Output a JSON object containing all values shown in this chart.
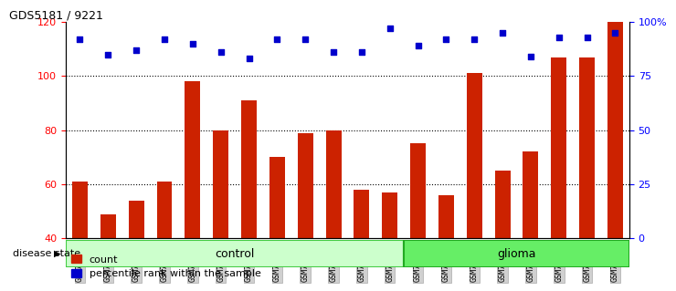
{
  "title": "GDS5181 / 9221",
  "samples": [
    "GSM769920",
    "GSM769921",
    "GSM769922",
    "GSM769923",
    "GSM769924",
    "GSM769925",
    "GSM769926",
    "GSM769927",
    "GSM769928",
    "GSM769929",
    "GSM769930",
    "GSM769931",
    "GSM769932",
    "GSM769933",
    "GSM769934",
    "GSM769935",
    "GSM769936",
    "GSM769937",
    "GSM769938",
    "GSM769939"
  ],
  "counts": [
    61,
    49,
    54,
    61,
    98,
    80,
    91,
    70,
    79,
    80,
    58,
    57,
    75,
    56,
    101,
    65,
    72,
    107,
    107,
    120
  ],
  "percentile_ranks_pct": [
    92,
    85,
    87,
    92,
    90,
    86,
    83,
    92,
    92,
    86,
    86,
    97,
    89,
    92,
    92,
    95,
    84,
    93,
    93,
    95
  ],
  "ylim_left": [
    40,
    120
  ],
  "ylim_right": [
    0,
    100
  ],
  "yticks_left": [
    40,
    60,
    80,
    100,
    120
  ],
  "yticks_right": [
    0,
    25,
    50,
    75,
    100
  ],
  "ytick_labels_right": [
    "0",
    "25",
    "50",
    "75",
    "100%"
  ],
  "bar_color": "#cc2200",
  "dot_color": "#0000cc",
  "control_color_light": "#ccffcc",
  "control_color_border": "#44cc44",
  "glioma_color_light": "#66ee66",
  "glioma_color_border": "#22aa22",
  "n_control": 12,
  "n_glioma": 8,
  "legend_count_label": "count",
  "legend_pct_label": "percentile rank within the sample",
  "disease_state_label": "disease state",
  "control_label": "control",
  "glioma_label": "glioma"
}
